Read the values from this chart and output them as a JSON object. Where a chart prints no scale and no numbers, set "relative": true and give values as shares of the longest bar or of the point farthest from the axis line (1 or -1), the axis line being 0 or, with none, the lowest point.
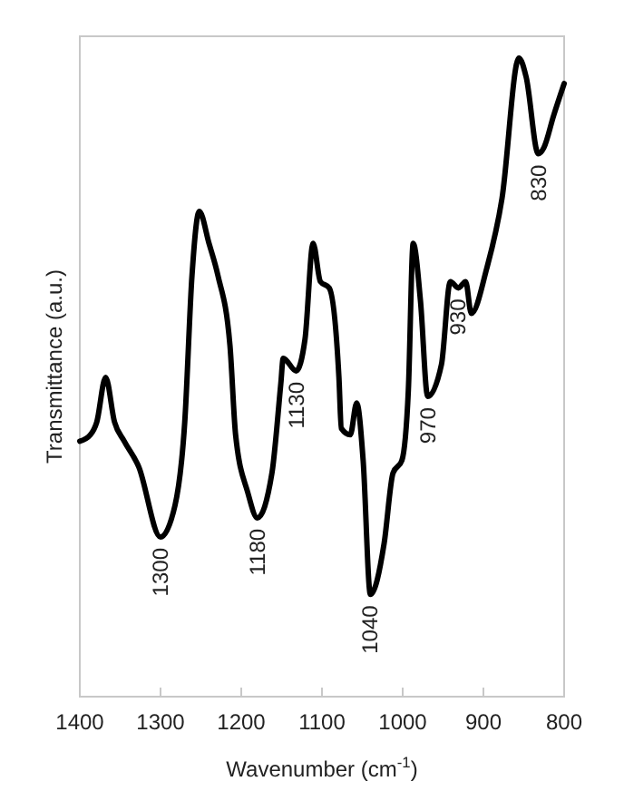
{
  "chart_data": {
    "type": "line",
    "relative": true,
    "xlabel": "Wavenumber (cm$^{-1}$)",
    "ylabel": "Transmittance (a.u.)",
    "xlim": [
      1400,
      800
    ],
    "xticks": [
      1400,
      1300,
      1200,
      1100,
      1000,
      900,
      800
    ],
    "tick_labels": "x",
    "grid": false,
    "line_style": "solid",
    "series": [
      {
        "color": "#000000",
        "x": [
          1400,
          1387,
          1379,
          1368,
          1357,
          1345,
          1327,
          1300,
          1282,
          1270,
          1261,
          1252,
          1240,
          1229,
          1214,
          1207,
          1192,
          1180,
          1162,
          1151,
          1148,
          1132,
          1121,
          1111,
          1102,
          1091,
          1079,
          1076,
          1065,
          1057,
          1049,
          1040,
          1023,
          1012,
          1001,
          993,
          987,
          978,
          969,
          952,
          941,
          931,
          922,
          915,
          896,
          877,
          856,
          847,
          832,
          825,
          813,
          800
        ],
        "values": [
          0.4,
          0.41,
          0.43,
          0.5,
          0.43,
          0.4,
          0.36,
          0.25,
          0.3,
          0.43,
          0.66,
          0.76,
          0.71,
          0.66,
          0.55,
          0.41,
          0.32,
          0.28,
          0.35,
          0.49,
          0.53,
          0.51,
          0.56,
          0.71,
          0.65,
          0.64,
          0.5,
          0.42,
          0.41,
          0.46,
          0.37,
          0.16,
          0.24,
          0.35,
          0.37,
          0.48,
          0.71,
          0.62,
          0.47,
          0.52,
          0.65,
          0.64,
          0.65,
          0.6,
          0.67,
          0.78,
          1.0,
          0.97,
          0.85,
          0.86,
          0.91,
          0.96
        ]
      }
    ],
    "annotations": [
      {
        "text": "1300",
        "x": 1300,
        "y": 0.25
      },
      {
        "text": "1180",
        "x": 1180,
        "y": 0.28
      },
      {
        "text": "1130",
        "x": 1132,
        "y": 0.51
      },
      {
        "text": "1040",
        "x": 1040,
        "y": 0.16
      },
      {
        "text": "970",
        "x": 969,
        "y": 0.47
      },
      {
        "text": "930",
        "x": 931,
        "y": 0.64
      },
      {
        "text": "830",
        "x": 832,
        "y": 0.85
      }
    ]
  }
}
